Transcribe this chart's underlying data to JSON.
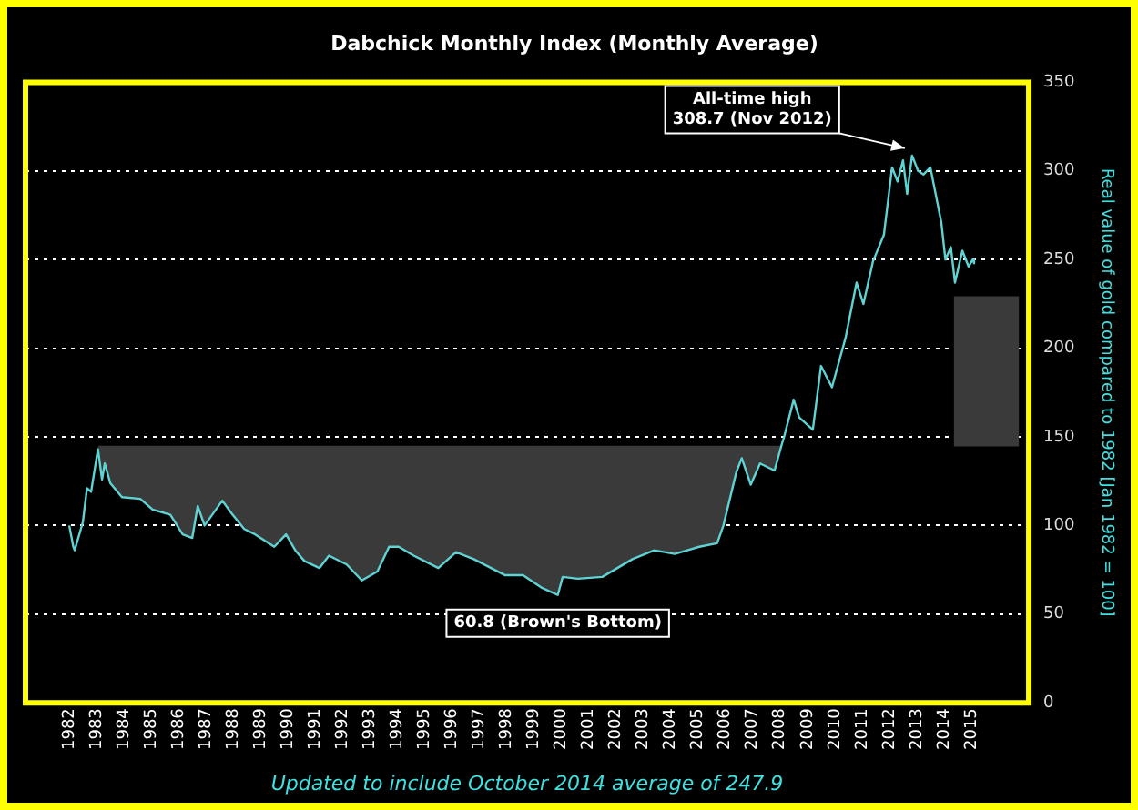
{
  "chart_data": {
    "type": "line",
    "title": "Dabchick Monthly Index (Monthly Average)",
    "ylabel": "Real value of gold compared to 1982 [Jan 1982 = 100]",
    "annotations": [
      {
        "text": "All-time high\n308.7 (Nov 2012)",
        "x": 2012.83,
        "y": 308.7
      },
      {
        "text": "60.8 (Brown's Bottom)",
        "x": 1999.87,
        "y": 60.8
      },
      "Updated to include October 2014 average of 247.9"
    ],
    "xlim": [
      1980.4,
      2017.1
    ],
    "xticks": [
      1982,
      1983,
      1984,
      1985,
      1986,
      1987,
      1988,
      1989,
      1990,
      1991,
      1992,
      1993,
      1994,
      1995,
      1996,
      1997,
      1998,
      1999,
      2000,
      2001,
      2002,
      2003,
      2004,
      2005,
      2006,
      2007,
      2008,
      2009,
      2010,
      2011,
      2012,
      2013,
      2014,
      2015
    ],
    "ylim": [
      0,
      350
    ],
    "yticks": [
      0,
      50,
      100,
      150,
      200,
      250,
      300,
      350
    ],
    "grid": "y",
    "legend": false,
    "series": [
      {
        "color": "#5fd3d3",
        "x": [
          1982.0,
          1982.15,
          1982.2,
          1982.5,
          1982.65,
          1982.8,
          1983.05,
          1983.2,
          1983.3,
          1983.5,
          1983.93,
          1984.6,
          1985.05,
          1985.7,
          1986.15,
          1986.5,
          1986.7,
          1986.95,
          1987.6,
          1987.93,
          1988.4,
          1988.8,
          1989.5,
          1989.93,
          1990.27,
          1990.6,
          1991.15,
          1991.5,
          1992.15,
          1992.7,
          1993.27,
          1993.7,
          1994.05,
          1994.6,
          1995.5,
          1996.15,
          1996.8,
          1997.93,
          1998.6,
          1999.27,
          1999.87,
          2000.05,
          2000.6,
          2001.5,
          2002.6,
          2003.4,
          2004.15,
          2005.05,
          2005.7,
          2005.93,
          2006.4,
          2006.6,
          2006.93,
          2007.27,
          2007.8,
          2008.05,
          2008.15,
          2008.5,
          2008.7,
          2009.2,
          2009.5,
          2009.9,
          2010.4,
          2010.8,
          2011.05,
          2011.4,
          2011.8,
          2012.1,
          2012.3,
          2012.5,
          2012.65,
          2012.83,
          2013.05,
          2013.25,
          2013.5,
          2013.9,
          2014.05,
          2014.25,
          2014.4,
          2014.67,
          2014.9,
          2015.05,
          2015.1
        ],
        "values": [
          100,
          88,
          86,
          102,
          121,
          119,
          143,
          126,
          135,
          124,
          116,
          115,
          109,
          106,
          95,
          93,
          111,
          100,
          114,
          107,
          98,
          95,
          88,
          95,
          86,
          80,
          76,
          83,
          78,
          69,
          74,
          88,
          88,
          83,
          76,
          85,
          81,
          72,
          72,
          65,
          60.8,
          71,
          70,
          71,
          81,
          86,
          84,
          88,
          90,
          100,
          130,
          138,
          123,
          135,
          131,
          145,
          150,
          171,
          161,
          154,
          190,
          178,
          206,
          237,
          225,
          249,
          264,
          302,
          294,
          306,
          287,
          308.7,
          300,
          298,
          302,
          271,
          250,
          257,
          237,
          255,
          246,
          250,
          247.9
        ],
        "lower": [
          null,
          null,
          null,
          null,
          null,
          null,
          143,
          126,
          135,
          124,
          116,
          115,
          109,
          106,
          95,
          93,
          111,
          100,
          114,
          107,
          98,
          95,
          88,
          95,
          86,
          80,
          76,
          83,
          78,
          69,
          74,
          88,
          88,
          83,
          76,
          85,
          81,
          72,
          72,
          65,
          60.8,
          71,
          70,
          71,
          81,
          86,
          84,
          88,
          90,
          100,
          130,
          138,
          123,
          135,
          131,
          145,
          null,
          null,
          null,
          null,
          null,
          null,
          null,
          null,
          null,
          null,
          null,
          null,
          null,
          null,
          null,
          null,
          null,
          null,
          null,
          null,
          null,
          null,
          null,
          null,
          null,
          null,
          null
        ],
        "upper": [
          null,
          null,
          null,
          null,
          null,
          null,
          145,
          145,
          145,
          145,
          145,
          145,
          145,
          145,
          145,
          145,
          145,
          145,
          145,
          145,
          145,
          145,
          145,
          145,
          145,
          145,
          145,
          145,
          145,
          145,
          145,
          145,
          145,
          145,
          145,
          145,
          145,
          145,
          145,
          145,
          145,
          145,
          145,
          145,
          145,
          145,
          145,
          145,
          145,
          145,
          145,
          145,
          145,
          145,
          145,
          145,
          null,
          null,
          null,
          null,
          null,
          null,
          null,
          null,
          null,
          null,
          null,
          null,
          null,
          null,
          null,
          null,
          null,
          null,
          null,
          null,
          null,
          null,
          null,
          null,
          null,
          null,
          null
        ]
      },
      {
        "type": "bar",
        "color": "#3a3a3a",
        "x": [
          2015.55
        ],
        "values": [
          84
        ],
        "base": [
          145
        ]
      }
    ]
  }
}
